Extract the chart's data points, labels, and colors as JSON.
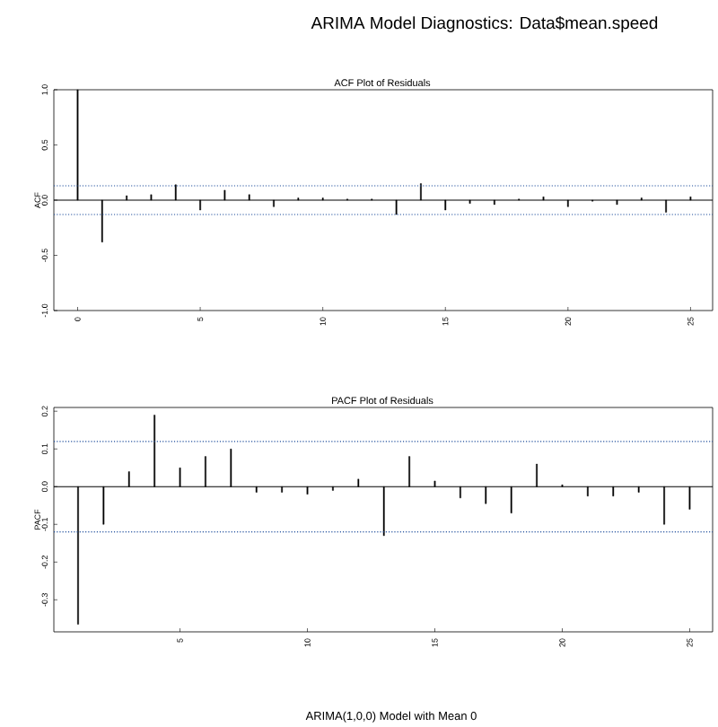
{
  "chart_data": [
    {
      "type": "bar",
      "title": "ARIMA Model Diagnostics:  Data$mean.speed",
      "subtitle": "ACF Plot of Residuals",
      "ylabel": "ACF",
      "color": "#000000",
      "x": [
        0,
        1,
        2,
        3,
        4,
        5,
        6,
        7,
        8,
        9,
        10,
        11,
        12,
        13,
        14,
        15,
        16,
        17,
        18,
        19,
        20,
        21,
        22,
        23,
        24,
        25
      ],
      "values": [
        1.0,
        -0.38,
        0.04,
        0.05,
        0.14,
        -0.09,
        0.09,
        0.05,
        -0.06,
        0.02,
        0.02,
        0.01,
        0.01,
        -0.13,
        0.15,
        -0.09,
        -0.03,
        -0.04,
        0.01,
        0.03,
        -0.06,
        -0.01,
        -0.04,
        0.02,
        -0.11,
        0.03
      ],
      "xlim": [
        -0.97,
        25.9
      ],
      "ylim": [
        -1.0,
        1.0
      ],
      "xticks": [
        0,
        5,
        10,
        15,
        20,
        25
      ],
      "yticks": [
        {
          "value": -1.0,
          "label": "-1.0"
        },
        {
          "value": -0.5,
          "label": "-0.5"
        },
        {
          "value": 0,
          "label": "0.0"
        },
        {
          "value": 0.5,
          "label": "0.5"
        },
        {
          "value": 1.0,
          "label": "1.0"
        }
      ],
      "ref_lines": [
        {
          "axis": "y",
          "value": 0.13,
          "color": "#1f4e9c",
          "line_style": "dotted"
        },
        {
          "axis": "y",
          "value": -0.13,
          "color": "#1f4e9c",
          "line_style": "dotted"
        }
      ]
    },
    {
      "type": "bar",
      "title": "PACF Plot of Residuals",
      "ylabel": "PACF",
      "color": "#000000",
      "x": [
        1,
        2,
        3,
        4,
        5,
        6,
        7,
        8,
        9,
        10,
        11,
        12,
        13,
        14,
        15,
        16,
        17,
        18,
        19,
        20,
        21,
        22,
        23,
        24,
        25
      ],
      "values": [
        -0.365,
        -0.1,
        0.04,
        0.19,
        0.05,
        0.08,
        0.1,
        -0.015,
        -0.015,
        -0.02,
        -0.01,
        0.02,
        -0.13,
        0.08,
        0.015,
        -0.03,
        -0.045,
        -0.07,
        0.06,
        0.005,
        -0.025,
        -0.025,
        -0.015,
        -0.1,
        -0.06
      ],
      "xlim": [
        0.05,
        25.9
      ],
      "ylim": [
        -0.385,
        0.21
      ],
      "xticks": [
        5,
        10,
        15,
        20,
        25
      ],
      "yticks": [
        {
          "value": -0.3,
          "label": "-0.3"
        },
        {
          "value": -0.2,
          "label": "-0.2"
        },
        {
          "value": -0.1,
          "label": "-0.1"
        },
        {
          "value": 0,
          "label": "0.0"
        },
        {
          "value": 0.1,
          "label": "0.1"
        },
        {
          "value": 0.2,
          "label": "0.2"
        }
      ],
      "ref_lines": [
        {
          "axis": "y",
          "value": 0.12,
          "color": "#1f4e9c",
          "line_style": "dotted"
        },
        {
          "axis": "y",
          "value": -0.12,
          "color": "#1f4e9c",
          "line_style": "dotted"
        }
      ],
      "annotations": [
        "ARIMA(1,0,0) Model with Mean 0"
      ]
    }
  ]
}
